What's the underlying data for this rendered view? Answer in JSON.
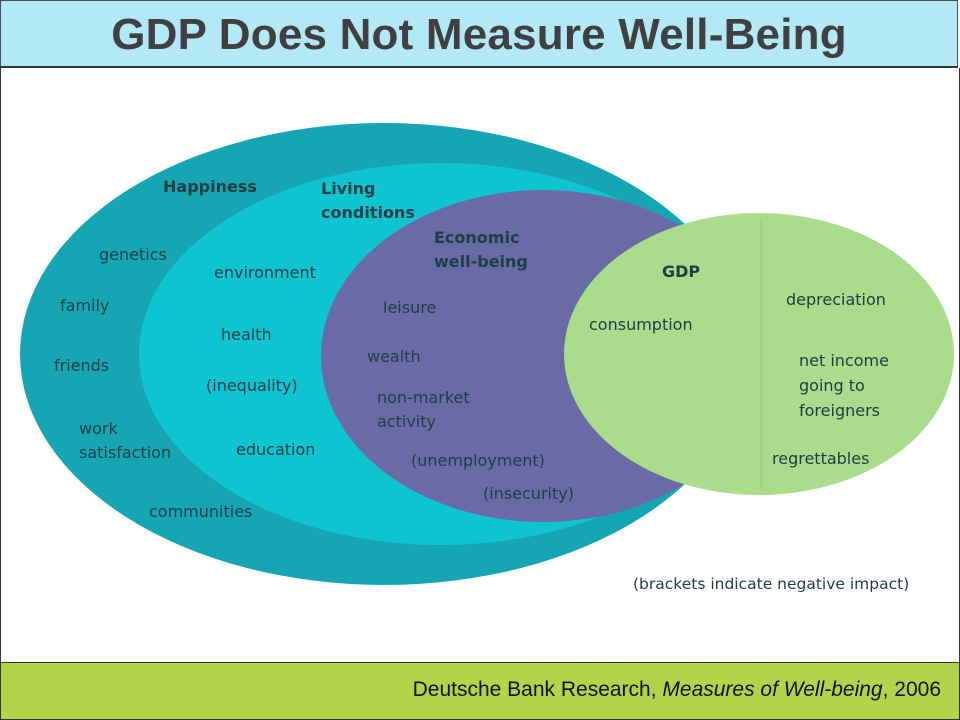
{
  "title": "GDP Does Not Measure Well-Being",
  "colors": {
    "title_bg": "#b3e8f7",
    "footer_bg": "#b3d44a",
    "happiness": "#16a6b3",
    "living_conditions": "#10c5d2",
    "economic_wellbeing": "#6a6ba6",
    "gdp": "#a9dc8b",
    "text": "#1e3d44"
  },
  "regions": {
    "happiness": {
      "heading": "Happiness",
      "items": [
        "genetics",
        "family",
        "friends",
        "work",
        "satisfaction",
        "communities"
      ]
    },
    "living_conditions": {
      "heading_line1": "Living",
      "heading_line2": "conditions",
      "items": [
        "environment",
        "health",
        "(inequality)",
        "education"
      ]
    },
    "economic_wellbeing": {
      "heading_line1": "Economic",
      "heading_line2": "well-being",
      "items": [
        "leisure",
        "wealth",
        "non-market",
        "activity",
        "(unemployment)",
        "(insecurity)"
      ]
    },
    "gdp": {
      "heading": "GDP",
      "items": [
        "consumption",
        "depreciation",
        "net income",
        "going to",
        "foreigners",
        "regrettables"
      ]
    }
  },
  "note": "(brackets indicate negative impact)",
  "footer": {
    "source": "Deutsche Bank Research, ",
    "publication": "Measures of Well-being",
    "year": ", 2006"
  }
}
